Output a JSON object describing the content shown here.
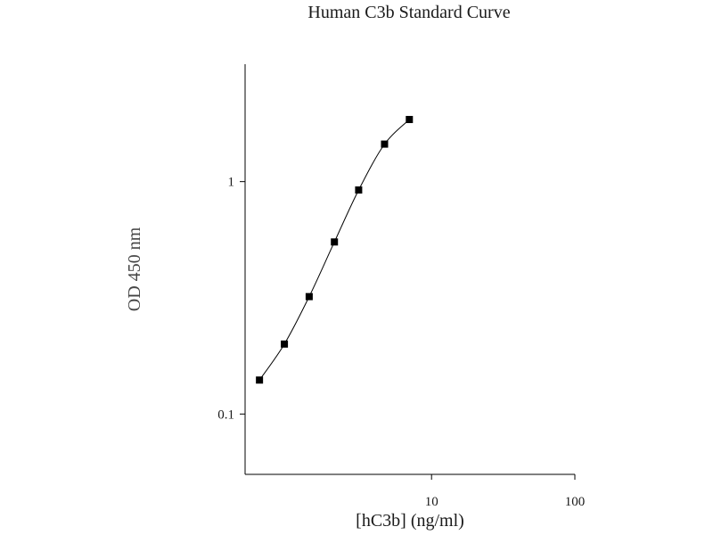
{
  "chart_data": {
    "type": "scatter",
    "title": "Human C3b Standard Curve",
    "xlabel": "[hC3b] (ng/ml)",
    "ylabel": "OD 450 nm",
    "xscale": "log",
    "yscale": "log",
    "xlim": [
      0.5,
      100
    ],
    "ylim": [
      0.055,
      3.2
    ],
    "xticks": [
      {
        "value": 10,
        "label": "10"
      },
      {
        "value": 100,
        "label": "100"
      }
    ],
    "yticks": [
      {
        "value": 0.1,
        "label": "0.1"
      },
      {
        "value": 1,
        "label": "1"
      }
    ],
    "grid": false,
    "series": [
      {
        "x": [
          0.63,
          0.94,
          1.4,
          2.1,
          3.1,
          4.7,
          7.0
        ],
        "y": [
          0.14,
          0.2,
          0.32,
          0.55,
          0.92,
          1.45,
          1.85
        ],
        "marker": "square",
        "color": "#000000",
        "fit_line": true
      }
    ]
  }
}
